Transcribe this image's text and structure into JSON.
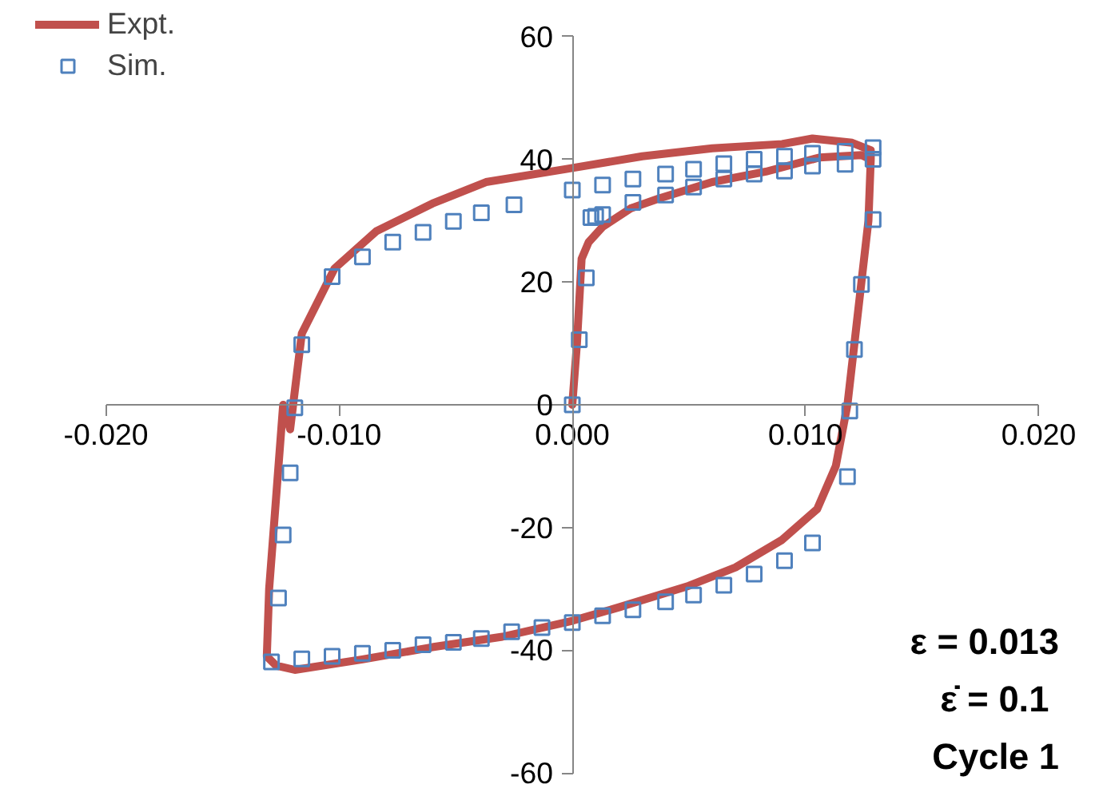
{
  "chart_data": {
    "type": "line",
    "xlim": [
      -0.02,
      0.02
    ],
    "ylim": [
      -60,
      60
    ],
    "xticks": [
      {
        "value": -0.02,
        "label": "-0.020"
      },
      {
        "value": -0.01,
        "label": "-0.010"
      },
      {
        "value": 0,
        "label": "0.000"
      },
      {
        "value": 0.01,
        "label": "0.010"
      },
      {
        "value": 0.02,
        "label": "0.020"
      }
    ],
    "yticks": [
      -60,
      -40,
      -20,
      0,
      20,
      40,
      60
    ],
    "grid": false,
    "legend": "top left",
    "line_style": "solid",
    "annotations": [
      "ε = 0.013",
      "ε̇  = 0.1",
      "Cycle 1"
    ],
    "series": [
      {
        "name": "Expt.",
        "color": "#c0504d",
        "marker": "none",
        "x": [
          0,
          0.0002,
          0.0004,
          0.0007,
          0.0013,
          0.0025,
          0.0037,
          0.006,
          0.0083,
          0.0106,
          0.0124,
          0.0128,
          0.0127,
          0.0124,
          0.0121,
          0.0118,
          0.0113,
          0.0105,
          0.009,
          0.007,
          0.005,
          0.002,
          0,
          -0.003,
          -0.006,
          -0.009,
          -0.0119,
          -0.0127,
          -0.0131,
          -0.013,
          -0.0127,
          -0.0124,
          -0.0121,
          -0.0116,
          -0.0102,
          -0.0084,
          -0.006,
          -0.0037,
          -0.0003,
          0.003,
          0.006,
          0.009,
          0.0103,
          0.012,
          0.0128,
          0.0128
        ],
        "values": [
          0,
          10,
          23.8,
          26.5,
          29,
          32,
          33.6,
          36.3,
          38,
          40.3,
          40.7,
          40,
          30,
          20,
          10,
          0,
          -10,
          -17,
          -22,
          -26.5,
          -29.5,
          -33,
          -35.2,
          -37.8,
          -39.5,
          -41.5,
          -43.2,
          -42.5,
          -41,
          -30,
          -15,
          0,
          -4,
          11.6,
          22.2,
          28.3,
          32.8,
          36.3,
          38.4,
          40.5,
          41.8,
          42.5,
          43.4,
          42.7,
          41.5,
          40
        ]
      },
      {
        "name": "Sim.",
        "type": "scatter",
        "color": "#4f81bd",
        "marker": "square",
        "x": [
          0,
          0.0003,
          0.0006,
          0.0008,
          0.001,
          0.0013,
          0.0026,
          0.004,
          0.0052,
          0.0065,
          0.0078,
          0.0091,
          0.0103,
          0.0117,
          0.0129,
          0.0129,
          0.0124,
          0.0121,
          0.0119,
          0.0118,
          0.0103,
          0.0091,
          0.0078,
          0.0065,
          0.0052,
          0.004,
          0.0026,
          0.0013,
          0,
          -0.0013,
          -0.0026,
          -0.0039,
          -0.0051,
          -0.0064,
          -0.0077,
          -0.009,
          -0.0103,
          -0.0116,
          -0.0129,
          -0.0126,
          -0.0124,
          -0.0121,
          -0.0119,
          -0.0116,
          -0.0103,
          -0.009,
          -0.0077,
          -0.0064,
          -0.0051,
          -0.0039,
          -0.0025,
          0,
          0.0013,
          0.0026,
          0.004,
          0.0052,
          0.0065,
          0.0078,
          0.0091,
          0.0103,
          0.0117,
          0.0129
        ],
        "values": [
          0,
          10.6,
          20.7,
          30.5,
          30.7,
          31,
          33,
          34.2,
          35.5,
          36.8,
          37.6,
          38.1,
          38.9,
          39.2,
          40,
          30.2,
          19.6,
          9,
          -1,
          -11.7,
          -22.5,
          -25.4,
          -27.6,
          -29.4,
          -31,
          -32.1,
          -33.4,
          -34.4,
          -35.5,
          -36.3,
          -37,
          -38.1,
          -38.7,
          -39.1,
          -40,
          -40.5,
          -41,
          -41.4,
          -41.9,
          -31.5,
          -21.2,
          -11.1,
          -0.5,
          9.8,
          20.9,
          24.1,
          26.5,
          28.1,
          29.9,
          31.3,
          32.6,
          35,
          35.8,
          36.8,
          37.6,
          38.4,
          39.3,
          40,
          40.5,
          41,
          41.3,
          41.9
        ]
      }
    ]
  }
}
